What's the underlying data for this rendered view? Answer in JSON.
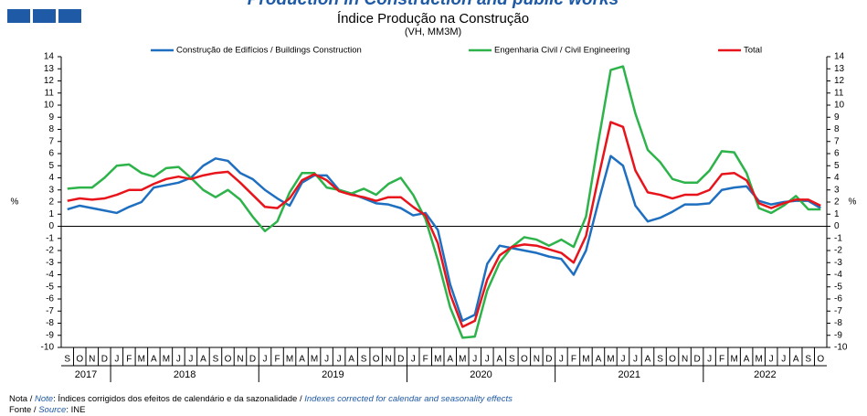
{
  "chart_data": {
    "type": "line",
    "header_title": "Production in Construction and public works",
    "title": "Índice Produção na Construção",
    "subtitle": "(VH, MM3M)",
    "y_label": "%",
    "categories": [
      "S",
      "O",
      "N",
      "D",
      "J",
      "F",
      "M",
      "A",
      "M",
      "J",
      "J",
      "A",
      "S",
      "O",
      "N",
      "D",
      "J",
      "F",
      "M",
      "A",
      "M",
      "J",
      "J",
      "A",
      "S",
      "O",
      "N",
      "D",
      "J",
      "F",
      "M",
      "A",
      "M",
      "J",
      "J",
      "A",
      "S",
      "O",
      "N",
      "D",
      "J",
      "F",
      "M",
      "A",
      "M",
      "J",
      "J",
      "A",
      "S",
      "O",
      "N",
      "D",
      "J",
      "F",
      "M",
      "A",
      "M",
      "J",
      "J",
      "A",
      "S",
      "O"
    ],
    "years": [
      "2017",
      "2018",
      "2019",
      "2020",
      "2021",
      "2022"
    ],
    "series": [
      {
        "name": "Construção de Edifícios / Buildings Construction",
        "color": "#1f6fc0",
        "values": [
          1.4,
          1.7,
          1.5,
          1.3,
          1.1,
          1.6,
          2.0,
          3.2,
          3.4,
          3.6,
          4.0,
          5.0,
          5.6,
          5.4,
          4.4,
          3.9,
          3.0,
          2.3,
          1.7,
          3.6,
          4.2,
          4.2,
          3.0,
          2.7,
          2.3,
          1.9,
          1.8,
          1.5,
          0.9,
          1.1,
          -0.3,
          -4.8,
          -7.8,
          -7.3,
          -3.1,
          -1.6,
          -1.8,
          -2.0,
          -2.2,
          -2.5,
          -2.7,
          -4.0,
          -2.0,
          2.0,
          5.8,
          5.0,
          1.7,
          0.4,
          0.7,
          1.2,
          1.8,
          1.8,
          1.9,
          3.0,
          3.2,
          3.3,
          2.1,
          1.8,
          2.0,
          2.1,
          2.1,
          1.5
        ]
      },
      {
        "name": "Engenharia Civil / Civil Engineering",
        "color": "#2db34a",
        "values": [
          3.1,
          3.2,
          3.2,
          4.0,
          5.0,
          5.1,
          4.4,
          4.1,
          4.8,
          4.9,
          4.0,
          3.0,
          2.4,
          3.0,
          2.2,
          0.8,
          -0.4,
          0.4,
          2.8,
          4.4,
          4.4,
          3.2,
          3.0,
          2.7,
          3.1,
          2.6,
          3.5,
          4.0,
          2.6,
          0.6,
          -2.8,
          -6.7,
          -9.2,
          -9.1,
          -5.3,
          -3.0,
          -1.7,
          -0.9,
          -1.1,
          -1.6,
          -1.1,
          -1.7,
          0.8,
          7.0,
          12.9,
          13.2,
          9.3,
          6.3,
          5.3,
          3.9,
          3.6,
          3.6,
          4.6,
          6.2,
          6.1,
          4.4,
          1.5,
          1.1,
          1.7,
          2.5,
          1.4,
          1.4
        ]
      },
      {
        "name": "Total",
        "color": "#e8141b",
        "values": [
          2.1,
          2.3,
          2.2,
          2.3,
          2.6,
          3.0,
          3.0,
          3.5,
          3.9,
          4.1,
          3.9,
          4.2,
          4.4,
          4.5,
          3.6,
          2.6,
          1.6,
          1.5,
          2.3,
          3.8,
          4.3,
          3.8,
          2.9,
          2.6,
          2.4,
          2.1,
          2.4,
          2.4,
          1.6,
          0.9,
          -1.4,
          -5.6,
          -8.3,
          -7.8,
          -4.4,
          -2.4,
          -1.7,
          -1.5,
          -1.6,
          -1.9,
          -2.2,
          -3.0,
          -0.8,
          4.0,
          8.6,
          8.2,
          4.6,
          2.8,
          2.6,
          2.3,
          2.6,
          2.6,
          3.0,
          4.3,
          4.4,
          3.8,
          1.9,
          1.5,
          1.9,
          2.2,
          2.2,
          1.7
        ]
      }
    ],
    "ylim": [
      -10,
      14
    ],
    "yticks": [
      -10,
      -9,
      -8,
      -7,
      -6,
      -5,
      -4,
      -3,
      -2,
      -1,
      0,
      1,
      2,
      3,
      4,
      5,
      6,
      7,
      8,
      9,
      10,
      11,
      12,
      13,
      14
    ],
    "grid": false,
    "legend": "top",
    "note": [
      "Nota / ",
      "Note",
      ": Índices corrigidos dos efeitos de calendário e da sazonalidade / ",
      "Indexes corrected for calendar and seasonality effects"
    ],
    "source": [
      "Fonte / ",
      "Source",
      ": INE"
    ]
  }
}
